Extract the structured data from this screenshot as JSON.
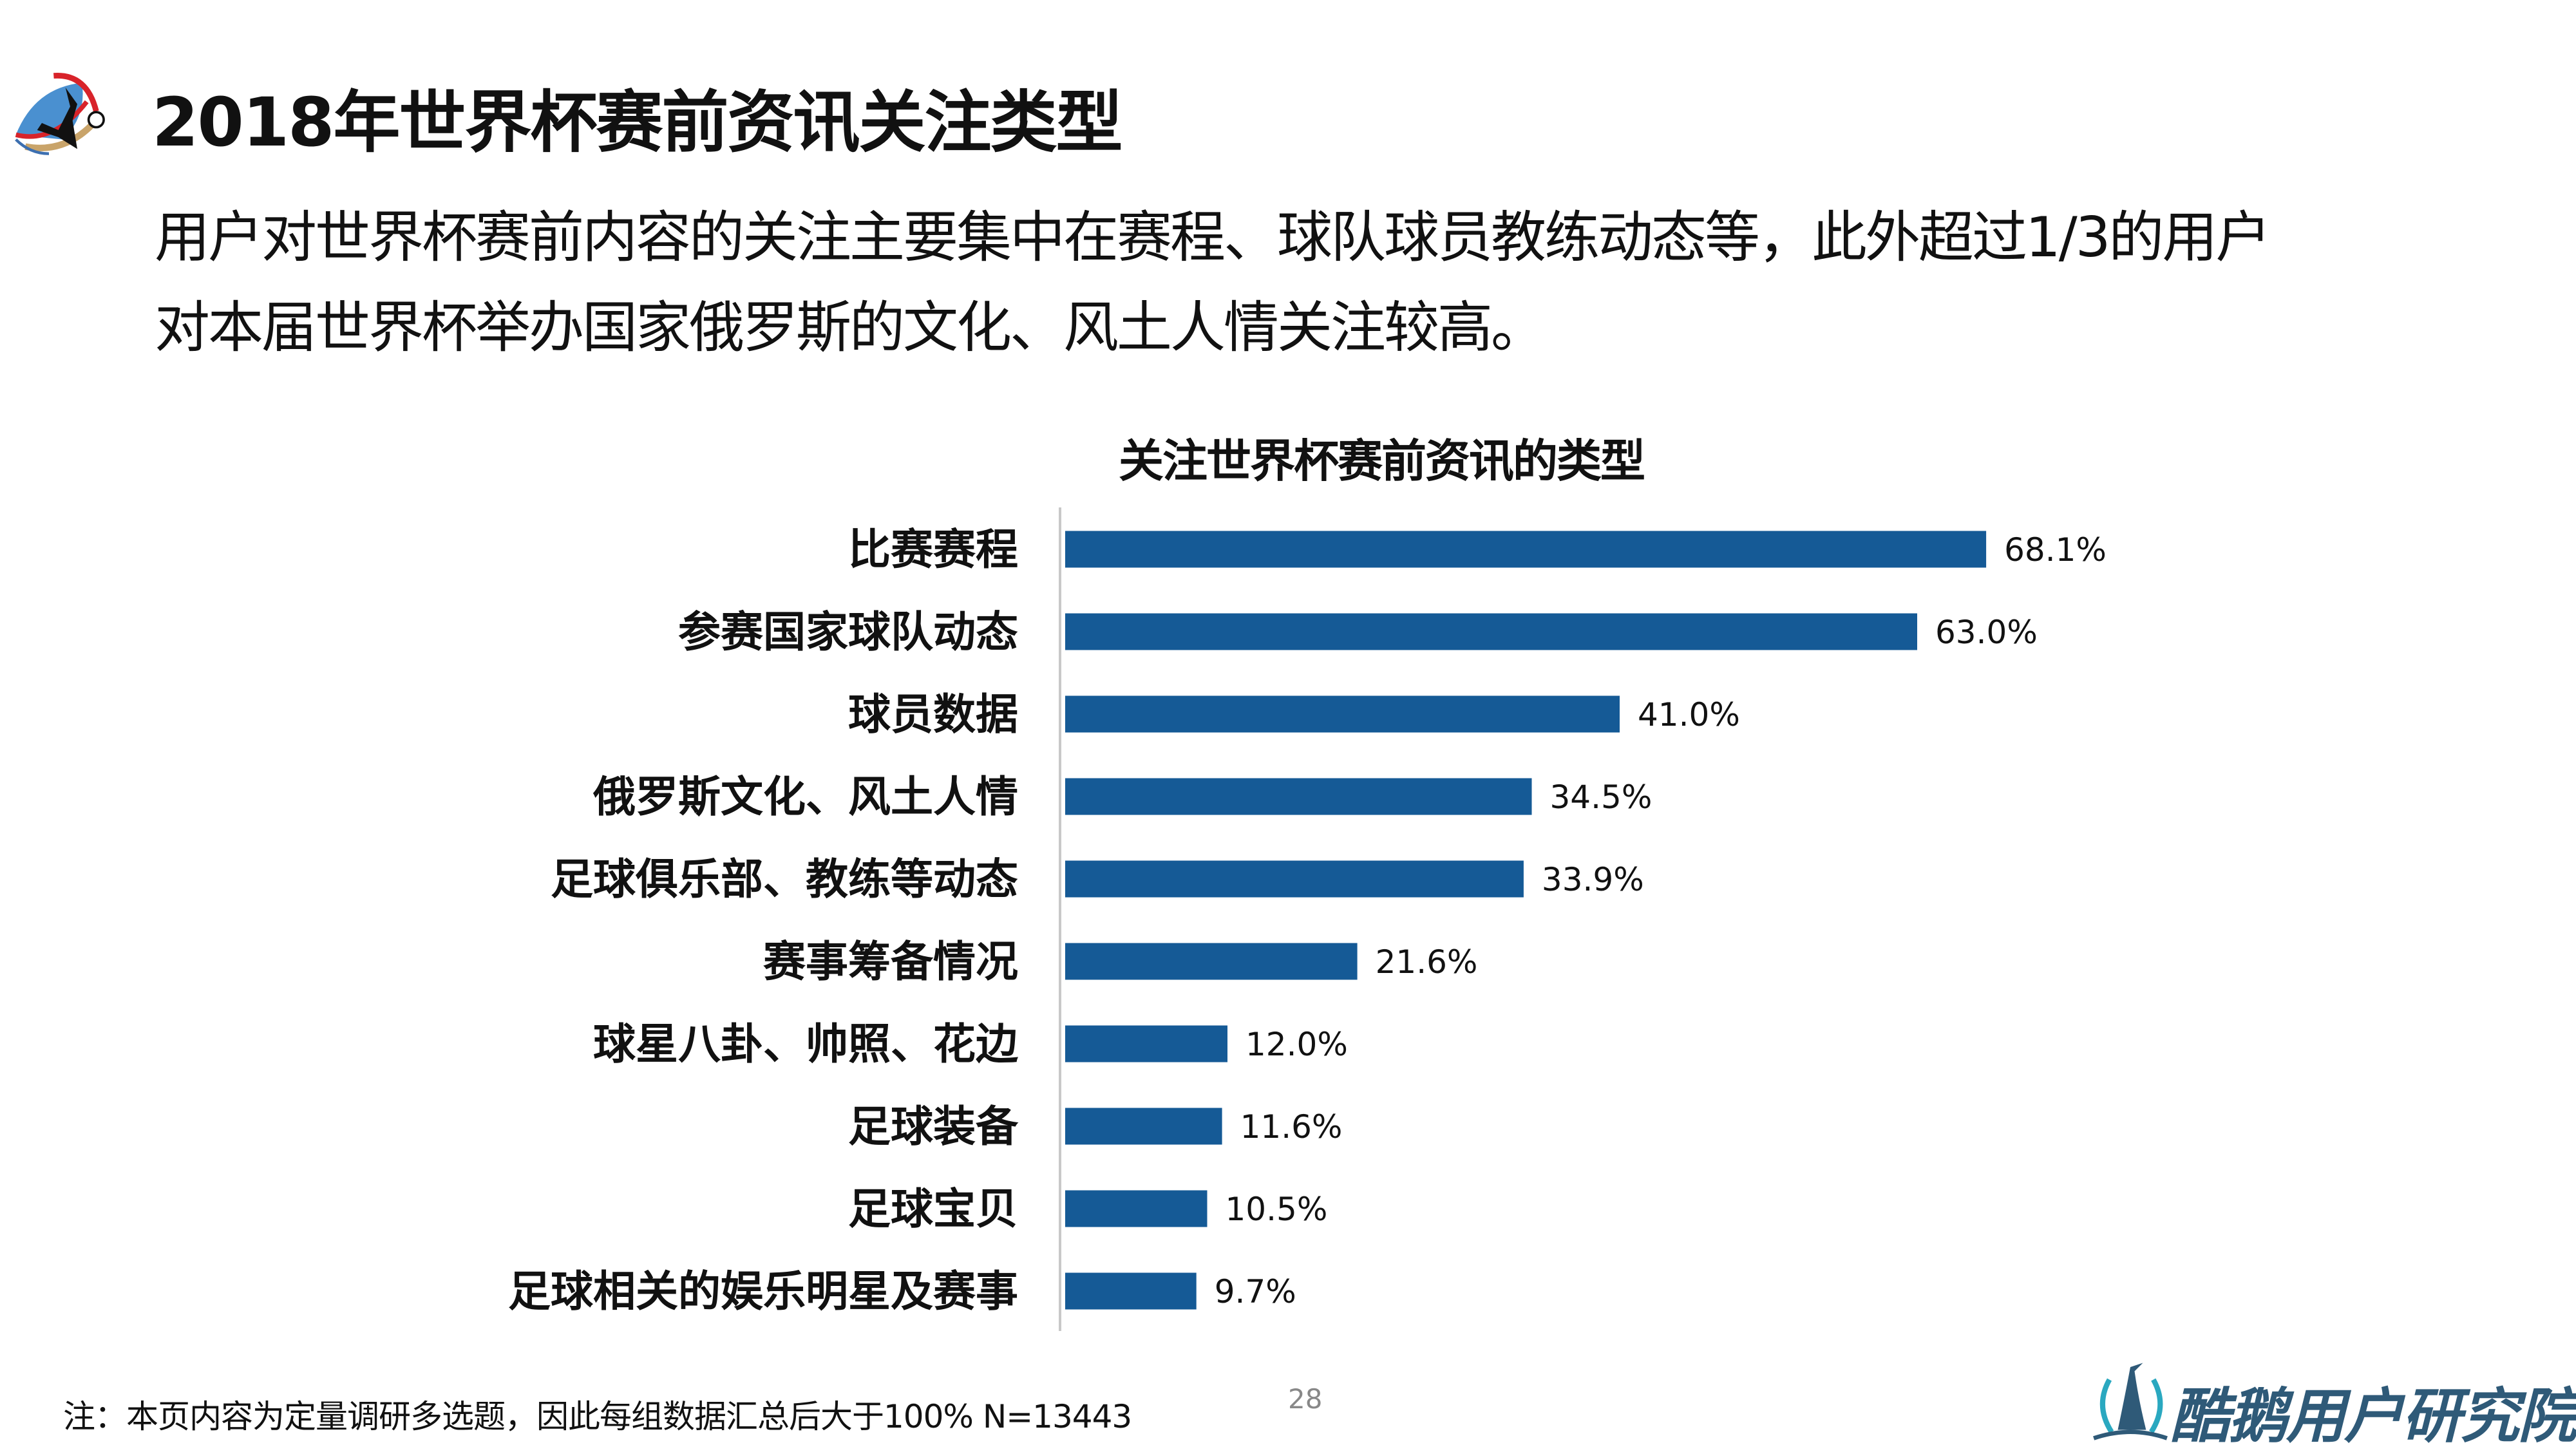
{
  "header": {
    "title": "2018年世界杯赛前资讯关注类型",
    "subtitle_lines": [
      "用户对世界杯赛前内容的关注主要集中在赛程、球队球员教练动态等，此外超过1/3的用户",
      "对本届世界杯举办国家俄罗斯的文化、风土人情关注较高。"
    ]
  },
  "chart_data": {
    "type": "bar",
    "orientation": "horizontal",
    "title": "关注世界杯赛前资讯的类型",
    "categories": [
      "比赛赛程",
      "参赛国家球队动态",
      "球员数据",
      "俄罗斯文化、风土人情",
      "足球俱乐部、教练等动态",
      "赛事筹备情况",
      "球星八卦、帅照、花边",
      "足球装备",
      "足球宝贝",
      "足球相关的娱乐明星及赛事"
    ],
    "values": [
      68.1,
      63.0,
      41.0,
      34.5,
      33.9,
      21.6,
      12.0,
      11.6,
      10.5,
      9.7
    ],
    "value_labels": [
      "68.1%",
      "63.0%",
      "41.0%",
      "34.5%",
      "33.9%",
      "21.6%",
      "12.0%",
      "11.6%",
      "10.5%",
      "9.7%"
    ],
    "unit": "%",
    "xlabel": "",
    "ylabel": "",
    "xlim": [
      0,
      100
    ],
    "grid": false,
    "legend": "none",
    "color": "#155a96"
  },
  "footer": {
    "note": "注：本页内容为定量调研多选题，因此每组数据汇总后大于100%   N=13443",
    "page_number": "28",
    "brand": "酷鹅用户研究院"
  }
}
